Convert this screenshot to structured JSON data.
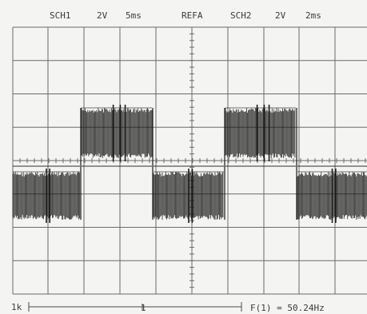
{
  "header": {
    "ch1_label": "SCH1",
    "ch1_volts": "2V",
    "ch1_time": "5ms",
    "ref_label": "REFA",
    "ch2_label": "SCH2",
    "ch2_volts": "2V",
    "ch2_time": "2ms"
  },
  "footer": {
    "left_label": "1k",
    "marker_label": "1",
    "freq_readout": "F(1) = 50.24Hz"
  },
  "colors": {
    "background": "#f4f4f2",
    "grid": "#6a6a6a",
    "trace": "#1a1a1a"
  },
  "waveform": {
    "description_level_sequence": [
      "low",
      "high",
      "low",
      "high",
      "low"
    ],
    "high_segments": 2,
    "low_segments": 3
  }
}
